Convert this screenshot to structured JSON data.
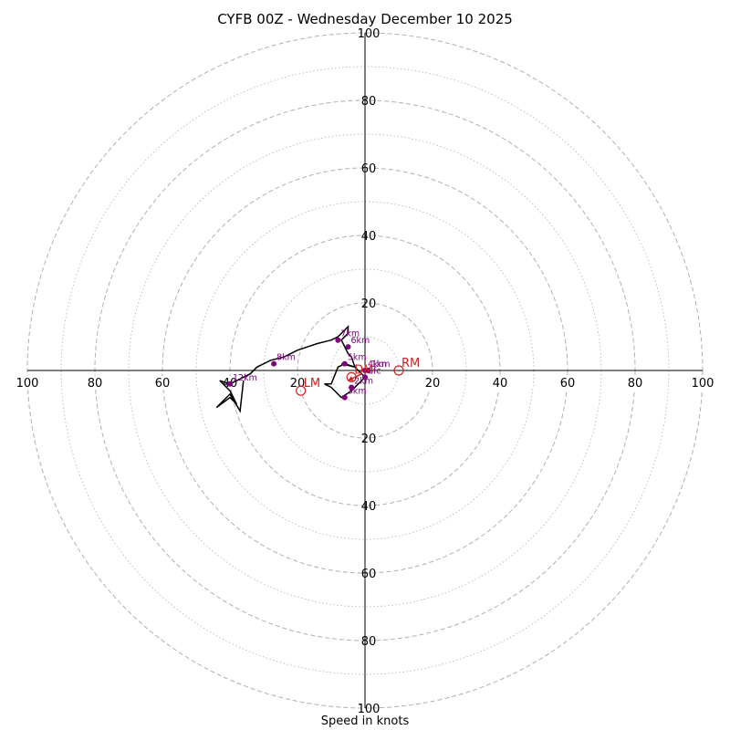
{
  "chart_data": {
    "type": "scatter",
    "title": "CYFB 00Z - Wednesday December 10 2025",
    "xlabel": "Speed in knots",
    "ylabel": "",
    "xlim": [
      -100,
      100
    ],
    "ylim": [
      -100,
      100
    ],
    "grid": true,
    "ring_values_major": [
      20,
      40,
      60,
      80,
      100
    ],
    "ring_values_minor": [
      10,
      30,
      50,
      70,
      90
    ],
    "tick_labels": [
      "20",
      "40",
      "60",
      "80",
      "100"
    ],
    "hodograph_trace": [
      [
        -7,
        2
      ],
      [
        -3,
        1
      ],
      [
        0,
        -2
      ],
      [
        -2,
        -4
      ],
      [
        -4,
        -6
      ],
      [
        -7,
        -8
      ],
      [
        -10,
        -5
      ],
      [
        -12,
        -4
      ],
      [
        -10,
        -4
      ],
      [
        -8,
        1
      ],
      [
        -6,
        2
      ],
      [
        -3,
        1
      ],
      [
        -4,
        4
      ],
      [
        -5,
        5
      ],
      [
        -6,
        7
      ],
      [
        -7,
        9
      ],
      [
        -5,
        11
      ],
      [
        -5,
        13
      ],
      [
        -8,
        10
      ],
      [
        -10,
        9
      ],
      [
        -14,
        8
      ],
      [
        -17,
        7
      ],
      [
        -20,
        6
      ],
      [
        -24,
        4
      ],
      [
        -28,
        3
      ],
      [
        -32,
        1
      ],
      [
        -34,
        -1
      ],
      [
        -38,
        -3
      ],
      [
        -40,
        -4
      ],
      [
        -43,
        -3
      ],
      [
        -40,
        -6
      ],
      [
        -38,
        -10
      ],
      [
        -40,
        -8
      ],
      [
        -44,
        -11
      ],
      [
        -40,
        -7
      ],
      [
        -37,
        -12
      ],
      [
        -36,
        -3
      ]
    ],
    "height_markers": [
      {
        "label": "Sfc",
        "x": 0,
        "y": -2
      },
      {
        "label": "1km",
        "x": 1,
        "y": 0
      },
      {
        "label": "2km",
        "x": -4,
        "y": -5
      },
      {
        "label": "3km",
        "x": -6,
        "y": -8
      },
      {
        "label": "4km",
        "x": 0,
        "y": 0
      },
      {
        "label": "5km",
        "x": -6,
        "y": 2
      },
      {
        "label": "6km",
        "x": -5,
        "y": 7
      },
      {
        "label": "7km",
        "x": -8,
        "y": 9
      },
      {
        "label": "8km",
        "x": -27,
        "y": 2
      },
      {
        "label": "12km",
        "x": -40,
        "y": -4
      }
    ],
    "storm_motions": [
      {
        "label": "RM",
        "x": 10,
        "y": 0
      },
      {
        "label": "LM",
        "x": -19,
        "y": -6
      },
      {
        "label": "DM",
        "x": -4,
        "y": -2
      }
    ],
    "mean_wind_arrow": {
      "from": [
        -1,
        -1
      ],
      "to": [
        -5,
        -3
      ]
    },
    "colors": {
      "trace": "#000000",
      "markers": "#800080",
      "storm_motion": "#cc2222",
      "grid": "#b0b0b0"
    }
  }
}
